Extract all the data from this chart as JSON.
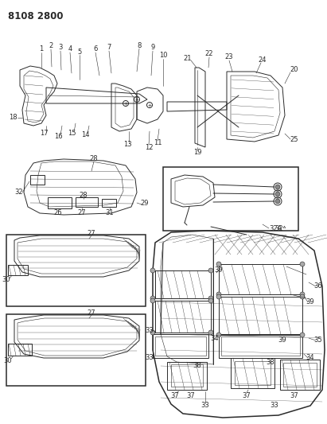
{
  "title": "8108 2800",
  "bg_color": "#ffffff",
  "fg_color": "#2a2a2a",
  "fig_width": 4.11,
  "fig_height": 5.33,
  "dpi": 100,
  "lw": 0.7,
  "lw_thick": 1.1,
  "lw_thin": 0.4,
  "fs_label": 6.0,
  "fs_title": 8.5
}
